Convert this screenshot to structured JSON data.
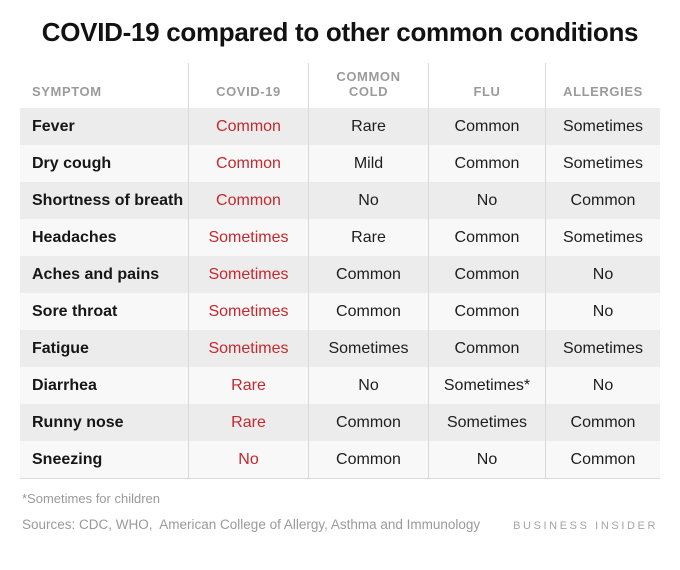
{
  "chart_data": {
    "type": "table",
    "title": "COVID-19 compared to other common conditions",
    "columns": [
      "SYMPTOM",
      "COVID-19",
      "COMMON COLD",
      "FLU",
      "ALLERGIES"
    ],
    "rows": [
      {
        "symptom": "Fever",
        "covid19": "Common",
        "common_cold": "Rare",
        "flu": "Common",
        "allergies": "Sometimes"
      },
      {
        "symptom": "Dry cough",
        "covid19": "Common",
        "common_cold": "Mild",
        "flu": "Common",
        "allergies": "Sometimes"
      },
      {
        "symptom": "Shortness of breath",
        "covid19": "Common",
        "common_cold": "No",
        "flu": "No",
        "allergies": "Common"
      },
      {
        "symptom": "Headaches",
        "covid19": "Sometimes",
        "common_cold": "Rare",
        "flu": "Common",
        "allergies": "Sometimes"
      },
      {
        "symptom": "Aches and pains",
        "covid19": "Sometimes",
        "common_cold": "Common",
        "flu": "Common",
        "allergies": "No"
      },
      {
        "symptom": "Sore throat",
        "covid19": "Sometimes",
        "common_cold": "Common",
        "flu": "Common",
        "allergies": "No"
      },
      {
        "symptom": "Fatigue",
        "covid19": "Sometimes",
        "common_cold": "Sometimes",
        "flu": "Common",
        "allergies": "Sometimes"
      },
      {
        "symptom": "Diarrhea",
        "covid19": "Rare",
        "common_cold": "No",
        "flu": "Sometimes*",
        "allergies": "No"
      },
      {
        "symptom": "Runny nose",
        "covid19": "Rare",
        "common_cold": "Common",
        "flu": "Sometimes",
        "allergies": "Common"
      },
      {
        "symptom": "Sneezing",
        "covid19": "No",
        "common_cold": "Common",
        "flu": "No",
        "allergies": "Common"
      }
    ],
    "layout_hints": {
      "covid19_column_highlighted": true,
      "zebra_striping": true,
      "header_alignment": "bottom"
    }
  },
  "footnote": "*Sometimes for children",
  "sources": "Sources: CDC, WHO,  American College of Allergy, Asthma and Immunology",
  "brand": "BUSINESS INSIDER",
  "colors": {
    "covid_value": "#c5282e",
    "header_text": "#9b9b9b",
    "row_stripe_dark": "#ececec",
    "row_stripe_light": "#f8f8f8",
    "divider": "#d9d9d9"
  }
}
